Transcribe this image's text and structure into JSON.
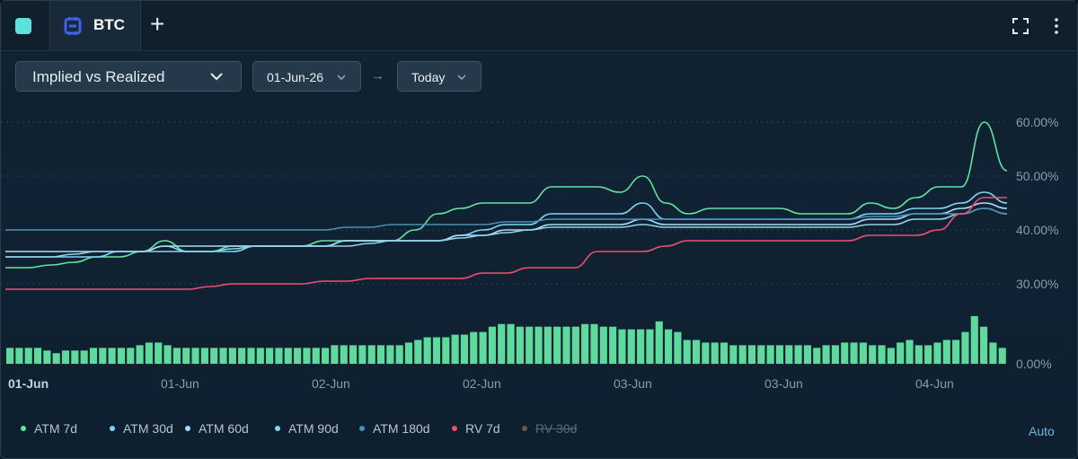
{
  "tab": {
    "label": "BTC"
  },
  "controls": {
    "view_label": "Implied vs Realized",
    "start_date": "01-Jun-26",
    "arrow": "→",
    "end_date": "Today"
  },
  "legend_extra": {
    "auto_label": "Auto"
  },
  "colors": {
    "accent_square": "#5ee0dc",
    "btc_icon": "#3a63e8",
    "atm7": "#62e3a0",
    "atm30": "#7ad6f5",
    "atm60": "#a9dcf2",
    "atm90": "#8fd3e4",
    "atm180": "#4a8fb5",
    "rv7": "#ef4f6e",
    "rv30": "#6a5a3c",
    "bars": "#5eda9c"
  },
  "chart_data": {
    "type": "line",
    "x_tick_labels": [
      "01-Jun",
      "01-Jun",
      "02-Jun",
      "02-Jun",
      "03-Jun",
      "03-Jun",
      "04-Jun"
    ],
    "y_tick_labels": [
      "60.00%",
      "50.00%",
      "40.00%",
      "30.00%",
      "0.00%"
    ],
    "ylim": [
      0,
      62
    ],
    "grid": true,
    "legend_placement": "bottom",
    "series": [
      {
        "name": "ATM 7d",
        "color_key": "atm7",
        "visible": true,
        "values": [
          33,
          33,
          33.5,
          34,
          35,
          35,
          36,
          38,
          36,
          36,
          37,
          37,
          37,
          37,
          38,
          38,
          38,
          38,
          40,
          43,
          44,
          45,
          45,
          45,
          48,
          48,
          48,
          47,
          50,
          45,
          43,
          44,
          44,
          44,
          44,
          43,
          43,
          43,
          45,
          44,
          46,
          48,
          48,
          60,
          51
        ]
      },
      {
        "name": "ATM 30d",
        "color_key": "atm30",
        "visible": true,
        "values": [
          35,
          35,
          35,
          35,
          35,
          36,
          36,
          37,
          36,
          36,
          36,
          37,
          37,
          37,
          37,
          38,
          38,
          38,
          38,
          38,
          39,
          40,
          41,
          41,
          43,
          43,
          43,
          43,
          45,
          42,
          42,
          42,
          42,
          42,
          42,
          42,
          42,
          42,
          43,
          43,
          44,
          44,
          45,
          47,
          45
        ]
      },
      {
        "name": "ATM 60d",
        "color_key": "atm60",
        "visible": true,
        "values": [
          36,
          36,
          36,
          36,
          36,
          36,
          36,
          37,
          37,
          37,
          37,
          37,
          37,
          37,
          37,
          38,
          38,
          38,
          38,
          38,
          39,
          39,
          40,
          40,
          41,
          41,
          41,
          41,
          42,
          41,
          41,
          41,
          41,
          41,
          41,
          41,
          41,
          41,
          42,
          42,
          43,
          43,
          44,
          45,
          44
        ]
      },
      {
        "name": "ATM 90d",
        "color_key": "atm90",
        "visible": true,
        "values": [
          35,
          35,
          35,
          35.5,
          36,
          36,
          36,
          36,
          36,
          36,
          36.5,
          37,
          37,
          37,
          37,
          37,
          37.5,
          38,
          38,
          38,
          38.5,
          39,
          39.5,
          40,
          40.5,
          40.5,
          40.5,
          40.5,
          41,
          40.5,
          40.5,
          40.5,
          40.5,
          40.5,
          40.5,
          40.5,
          40.5,
          40.5,
          41,
          41,
          42,
          42,
          43,
          44,
          43
        ]
      },
      {
        "name": "ATM 180d",
        "color_key": "atm180",
        "visible": true,
        "values": [
          40,
          40,
          40,
          40,
          40,
          40,
          40,
          40,
          40,
          40,
          40,
          40,
          40,
          40,
          40,
          40.5,
          40.5,
          41,
          41,
          41,
          41,
          41,
          41.5,
          41.5,
          42,
          42,
          42,
          42,
          42,
          42,
          42,
          42,
          42,
          42,
          42,
          42,
          42,
          42,
          42.5,
          42.5,
          43,
          43,
          43,
          44,
          43
        ]
      },
      {
        "name": "RV 7d",
        "color_key": "rv7",
        "visible": true,
        "values": [
          29,
          29,
          29,
          29,
          29,
          29,
          29,
          29,
          29,
          29.5,
          30,
          30,
          30,
          30,
          30.5,
          30.5,
          31,
          31,
          31,
          31,
          31,
          32,
          32,
          33,
          33,
          33,
          36,
          36,
          36,
          37,
          38,
          38,
          38,
          38,
          38,
          38,
          38,
          38,
          39,
          39,
          39,
          40,
          43,
          46,
          46
        ]
      },
      {
        "name": "RV 30d",
        "color_key": "rv30",
        "visible": false,
        "values": []
      }
    ],
    "bars": {
      "color_key": "bars",
      "values": [
        3,
        3,
        3,
        3,
        2.5,
        2,
        2.5,
        2.5,
        2.5,
        3,
        3,
        3,
        3,
        3,
        3.5,
        4,
        4,
        3.5,
        3,
        3,
        3,
        3,
        3,
        3,
        3,
        3,
        3,
        3,
        3,
        3,
        3,
        3,
        3,
        3,
        3,
        3.5,
        3.5,
        3.5,
        3.5,
        3.5,
        3.5,
        3.5,
        3.5,
        4,
        4.5,
        5,
        5,
        5,
        5.5,
        5.5,
        6,
        6,
        7,
        7.5,
        7.5,
        7,
        7,
        7,
        7,
        7,
        7,
        7,
        7.5,
        7.5,
        7,
        7,
        6.5,
        6.5,
        6.5,
        6.5,
        8,
        6.5,
        6,
        4.5,
        4.5,
        4,
        4,
        4,
        3.5,
        3.5,
        3.5,
        3.5,
        3.5,
        3.5,
        3.5,
        3.5,
        3.5,
        3,
        3.5,
        3.5,
        4,
        4,
        4,
        3.5,
        3.5,
        3,
        4,
        4.5,
        3.5,
        3.5,
        4,
        4.5,
        4.5,
        6,
        9,
        7,
        4,
        3
      ]
    }
  }
}
